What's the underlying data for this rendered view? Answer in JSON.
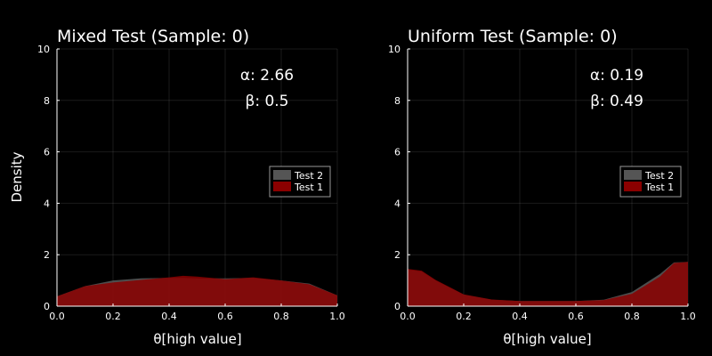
{
  "colors": {
    "background": "#000000",
    "foreground": "#ffffff",
    "test1": "#8b0000",
    "test2": "#555555"
  },
  "chart_data": [
    {
      "type": "area",
      "title": "Mixed Test (Sample: 0)",
      "xlabel": "θ[high value]",
      "ylabel": "Density",
      "xlim": [
        0,
        1
      ],
      "ylim": [
        0,
        10
      ],
      "xticks": [
        "0.0",
        "0.2",
        "0.4",
        "0.6",
        "0.8",
        "1.0"
      ],
      "yticks": [
        "0",
        "2",
        "4",
        "6",
        "8",
        "10"
      ],
      "grid": true,
      "legend_position": "right",
      "annotations": [
        "α: 2.66",
        "β: 0.5"
      ],
      "x": [
        0.0,
        0.1,
        0.2,
        0.3,
        0.4,
        0.45,
        0.5,
        0.6,
        0.7,
        0.8,
        0.9,
        1.0
      ],
      "series": [
        {
          "name": "Test 2",
          "color": "#555555",
          "values": [
            0.38,
            0.78,
            1.0,
            1.08,
            1.1,
            1.1,
            1.08,
            1.08,
            1.1,
            1.0,
            0.88,
            0.42
          ]
        },
        {
          "name": "Test 1",
          "color": "#8b0000",
          "values": [
            0.38,
            0.78,
            0.92,
            1.02,
            1.12,
            1.18,
            1.15,
            1.05,
            1.12,
            1.0,
            0.85,
            0.42
          ]
        }
      ]
    },
    {
      "type": "area",
      "title": "Uniform Test (Sample: 0)",
      "xlabel": "θ[high value]",
      "ylabel": "",
      "xlim": [
        0,
        1
      ],
      "ylim": [
        0,
        10
      ],
      "xticks": [
        "0.0",
        "0.2",
        "0.4",
        "0.6",
        "0.8",
        "1.0"
      ],
      "yticks": [
        "0",
        "2",
        "4",
        "6",
        "8",
        "10"
      ],
      "grid": true,
      "legend_position": "right",
      "annotations": [
        "α: 0.19",
        "β: 0.49"
      ],
      "x": [
        0.0,
        0.05,
        0.1,
        0.2,
        0.3,
        0.4,
        0.5,
        0.6,
        0.7,
        0.8,
        0.9,
        0.95,
        1.0
      ],
      "series": [
        {
          "name": "Test 2",
          "color": "#555555",
          "values": [
            1.42,
            1.35,
            1.0,
            0.45,
            0.25,
            0.2,
            0.2,
            0.2,
            0.25,
            0.55,
            1.25,
            1.7,
            1.72
          ]
        },
        {
          "name": "Test 1",
          "color": "#8b0000",
          "values": [
            1.45,
            1.38,
            1.02,
            0.46,
            0.26,
            0.2,
            0.2,
            0.2,
            0.24,
            0.48,
            1.15,
            1.68,
            1.72
          ]
        }
      ]
    }
  ]
}
